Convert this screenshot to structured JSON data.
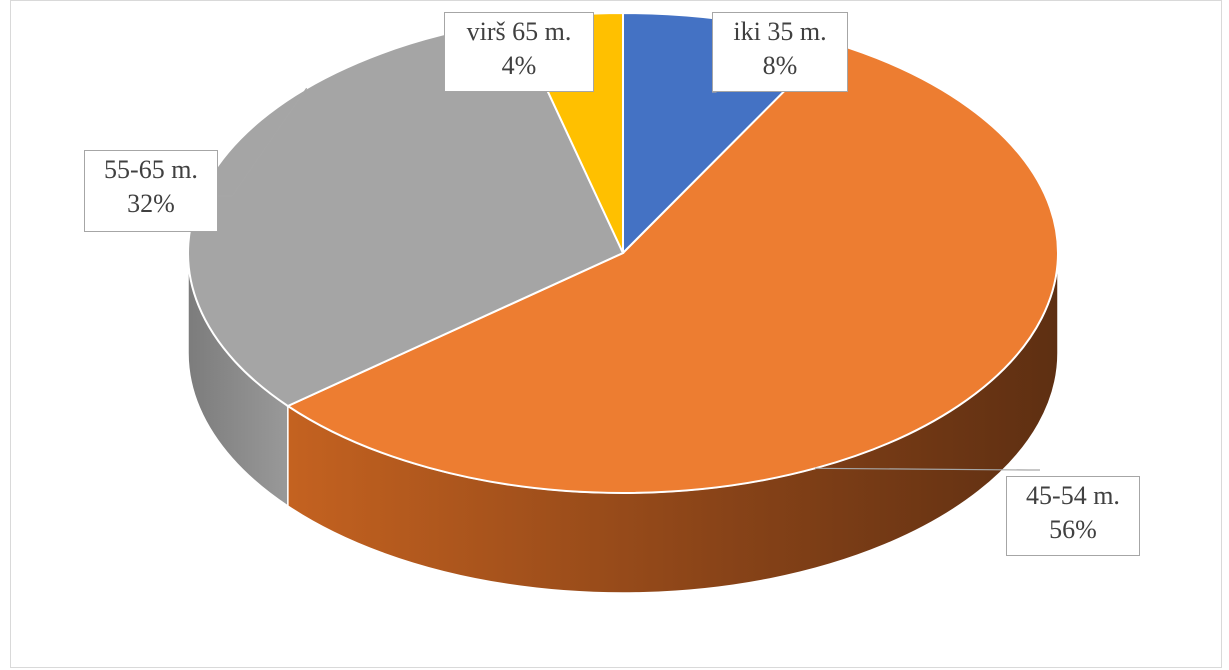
{
  "chart_data": {
    "type": "pie",
    "title": "",
    "slices": [
      {
        "label": "iki 35 m.",
        "value": 8,
        "pct_label": "8%",
        "color": "#4472c4"
      },
      {
        "label": "45-54 m.",
        "value": 56,
        "pct_label": "56%",
        "color": "#ed7d31"
      },
      {
        "label": "55-65 m.",
        "value": 32,
        "pct_label": "32%",
        "color": "#a5a5a5"
      },
      {
        "label": "virš 65 m.",
        "value": 4,
        "pct_label": "4%",
        "color": "#ffc000"
      }
    ],
    "style": "3d-pie",
    "legend": "none"
  }
}
